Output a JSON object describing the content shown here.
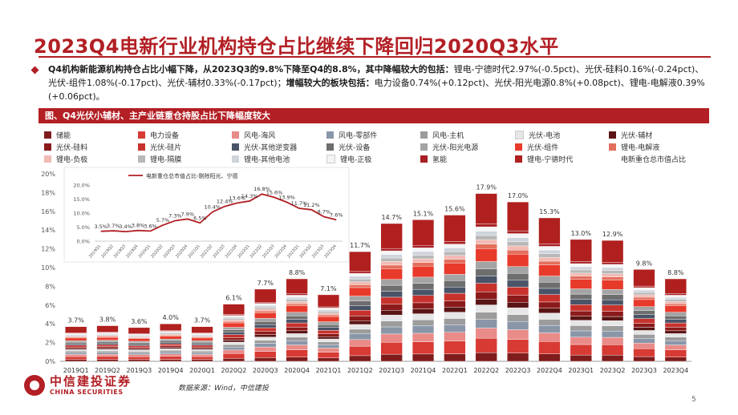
{
  "title": "2023Q4电新行业机构持仓占比继续下降回归2020Q3水平",
  "desc": {
    "b1": "Q4机构新能源机构持仓占比小幅下降，从2023Q3的9.8%下降至Q4的8.8%，其中降幅较大的包括：",
    "t1": "锂电-宁德时代2.97%(-0.5pct)、光伏-硅料0.16%(-0.24pct)、光伏-组件1.08%(-0.17pct)、光伏-辅材0.33%(-0.17pct)；",
    "b2": "增幅较大的板块包括：",
    "t2": "电力设备0.74%(+0.12pct)、光伏-阳光电源0.8%(+0.08pct)、锂电-电解液0.39%(+0.06pct)。"
  },
  "caption": "图、Q4光伏小辅材、主产业链重仓持股占比下降幅度较大",
  "source": "数据来源：Wind，中信建投",
  "logo": {
    "cn": "中信建投证券",
    "en": "CHINA SECURITIES"
  },
  "page_number": "5",
  "legend": [
    {
      "name": "储能",
      "color": "#7f1d1d"
    },
    {
      "name": "电力设备",
      "color": "#d83a34"
    },
    {
      "name": "风电-海风",
      "color": "#e98b88"
    },
    {
      "name": "风电-零部件",
      "color": "#8a96a8"
    },
    {
      "name": "风电-主机",
      "color": "#9c9c9c"
    },
    {
      "name": "光伏-电池",
      "color": "#e6e6e6"
    },
    {
      "name": "光伏-辅材",
      "color": "#5a1414"
    },
    {
      "name": "光伏-硅料",
      "color": "#8b1a1a"
    },
    {
      "name": "光伏-硅片",
      "color": "#c8322d"
    },
    {
      "name": "光伏-其他逆变器",
      "color": "#4a5468"
    },
    {
      "name": "光伏-设备",
      "color": "#6e6e6e"
    },
    {
      "name": "光伏-阳光电源",
      "color": "#a4a4a4"
    },
    {
      "name": "光伏-组件",
      "color": "#e83a2b"
    },
    {
      "name": "锂电-电解液",
      "color": "#e46e5c"
    },
    {
      "name": "锂电-负极",
      "color": "#f2b9b3"
    },
    {
      "name": "锂电-隔膜",
      "color": "#b8b8b8"
    },
    {
      "name": "锂电-其他电池",
      "color": "#cfd4dc"
    },
    {
      "name": "锂电-正极",
      "color": "#f4f4f4"
    },
    {
      "name": "氢能",
      "color": "#a81f24"
    },
    {
      "name": "锂电-宁德时代",
      "color": "#b0201f"
    },
    {
      "name": "电新重仓总市值占比",
      "color": ""
    }
  ],
  "chart_data": {
    "type": "bar",
    "stacked": true,
    "categories": [
      "2019Q1",
      "2019Q2",
      "2019Q3",
      "2019Q4",
      "2020Q1",
      "2020Q2",
      "2020Q3",
      "2020Q4",
      "2021Q1",
      "2021Q2",
      "2021Q3",
      "2021Q4",
      "2022Q1",
      "2022Q2",
      "2022Q3",
      "2022Q4",
      "2023Q1",
      "2023Q2",
      "2023Q3",
      "2023Q4"
    ],
    "totals": [
      3.7,
      3.8,
      3.6,
      4.0,
      3.7,
      6.1,
      7.7,
      8.8,
      7.1,
      11.7,
      14.7,
      15.1,
      15.6,
      17.9,
      17.0,
      15.3,
      13.0,
      12.9,
      9.8,
      8.8
    ],
    "total_labels": [
      "3.7%",
      "3.8%",
      "3.6%",
      "4.0%",
      "3.7%",
      "6.1%",
      "7.7%",
      "8.8%",
      "7.1%",
      "11.7%",
      "14.7%",
      "15.1%",
      "15.6%",
      "17.9%",
      "17.0%",
      "15.3%",
      "13.0%",
      "12.9%",
      "9.8%",
      "8.8%"
    ],
    "y_ticks": [
      "0%",
      "2%",
      "4%",
      "6%",
      "8%",
      "10%",
      "12%",
      "14%",
      "16%",
      "18%",
      "20%"
    ],
    "ylim": [
      0,
      20
    ],
    "inset": {
      "type": "line",
      "title": "电新重仓总市值占比-剔除阳光、宁德",
      "categories": [
        "2019Q1",
        "2019Q2",
        "2019Q3",
        "2019Q4",
        "2020Q1",
        "2020Q2",
        "2020Q3",
        "2020Q4",
        "2021Q1",
        "2021Q2",
        "2021Q3",
        "2021Q4",
        "2022Q1",
        "2022Q2",
        "2022Q3",
        "2022Q4",
        "2023Q1",
        "2023Q2",
        "2023Q3",
        "2023Q4"
      ],
      "values": [
        3.5,
        3.7,
        3.4,
        3.8,
        3.6,
        5.7,
        7.3,
        7.9,
        6.5,
        10.4,
        12.4,
        13.6,
        14.3,
        16.8,
        15.6,
        13.9,
        11.7,
        11.2,
        8.7,
        7.6
      ],
      "labels": [
        "3.5%",
        "3.7%",
        "3.4%",
        "3.8%",
        "3.6%",
        "5.7%",
        "7.3%",
        "7.9%",
        "6.5%",
        "10.4%",
        "12.4%",
        "13.6%",
        "14.3%",
        "16.8%",
        "15.6%",
        "13.9%",
        "11.7%",
        "11.2%",
        "8.7%",
        "7.6%"
      ],
      "y_ticks": [
        "0.0%",
        "5.0%",
        "10.0%",
        "15.0%",
        "20.0%"
      ],
      "ylim": [
        0,
        20
      ],
      "color": "#b21f24"
    }
  }
}
